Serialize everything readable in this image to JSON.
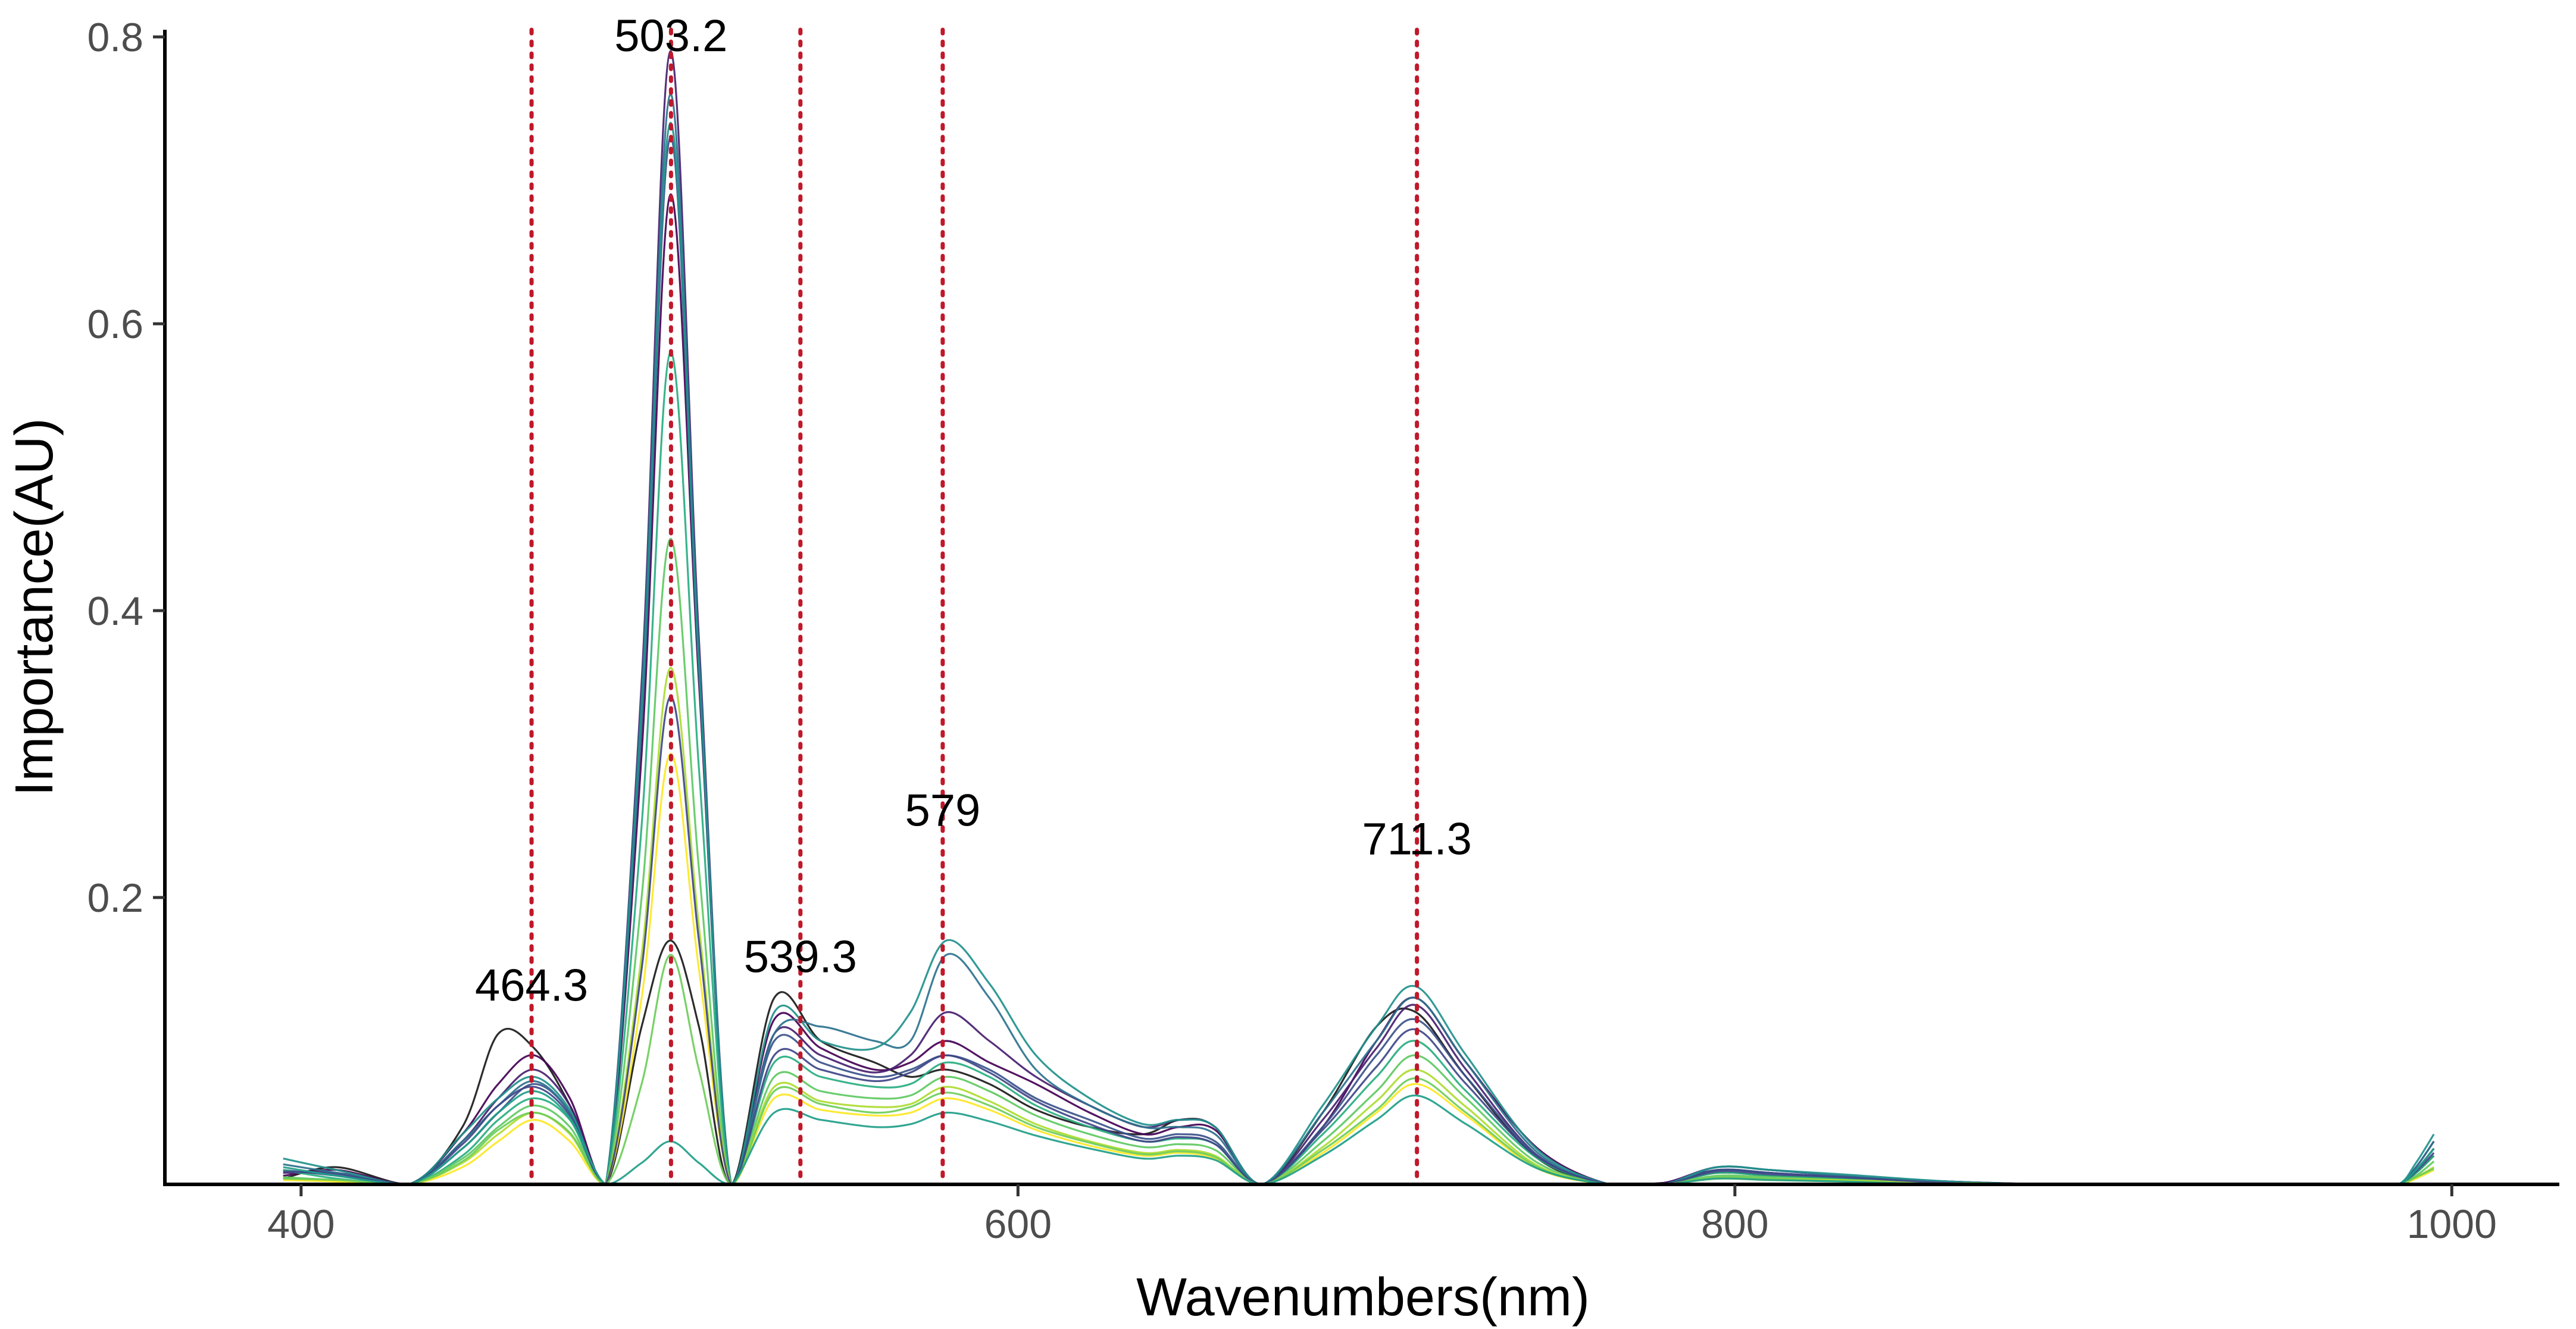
{
  "chart_data": {
    "type": "line",
    "xlabel": "Wavenumbers(nm)",
    "ylabel": "Importance(AU)",
    "xlim": [
      362,
      1030
    ],
    "ylim": [
      0,
      0.805
    ],
    "x_ticks": [
      "400",
      "600",
      "800",
      "1000"
    ],
    "y_ticks": [
      "0.2",
      "0.4",
      "0.6",
      "0.8"
    ],
    "grid": false,
    "legend": "none",
    "markers": [
      {
        "x": 464.3,
        "label": "464.3",
        "label_y": 0.128
      },
      {
        "x": 503.2,
        "label": "503.2",
        "label_y": 0.79
      },
      {
        "x": 539.3,
        "label": "539.3",
        "label_y": 0.148
      },
      {
        "x": 579,
        "label": "579",
        "label_y": 0.25
      },
      {
        "x": 711.3,
        "label": "711.3",
        "label_y": 0.23
      }
    ],
    "marker_color": "#c0182a",
    "series_palette": [
      "#440154",
      "#3b528b",
      "#21918c",
      "#5ec962",
      "#fde725"
    ],
    "series": [
      {
        "color": "#1a1a1a",
        "values": [
          0.004,
          0.012,
          0.0,
          0.04,
          0.105,
          0.095,
          0.055,
          0.0,
          0.11,
          0.17,
          0.11,
          0.0,
          0.13,
          0.1,
          0.085,
          0.075,
          0.08,
          0.07,
          0.052,
          0.04,
          0.035,
          0.045,
          0.04,
          0.0,
          0.05,
          0.11,
          0.12,
          0.075,
          0.018,
          0.0,
          0.0,
          0.008,
          0.006,
          0.004,
          0.0,
          0.0,
          0.0,
          0.0,
          0.0,
          0.0,
          0.0,
          0.008,
          0.02
        ]
      },
      {
        "color": "#440154",
        "values": [
          0.006,
          0.01,
          0.0,
          0.035,
          0.07,
          0.09,
          0.06,
          0.0,
          0.3,
          0.69,
          0.35,
          0.0,
          0.115,
          0.095,
          0.08,
          0.085,
          0.1,
          0.085,
          0.07,
          0.05,
          0.035,
          0.04,
          0.038,
          0.0,
          0.04,
          0.1,
          0.13,
          0.085,
          0.025,
          0.0,
          0.001,
          0.01,
          0.008,
          0.005,
          0.002,
          0.0,
          0.0,
          0.0,
          0.0,
          0.0,
          0.0,
          0.01,
          0.025
        ]
      },
      {
        "color": "#481f70",
        "values": [
          0.008,
          0.008,
          0.0,
          0.03,
          0.06,
          0.08,
          0.055,
          0.0,
          0.35,
          0.79,
          0.38,
          0.0,
          0.105,
          0.09,
          0.078,
          0.09,
          0.12,
          0.1,
          0.075,
          0.055,
          0.04,
          0.045,
          0.04,
          0.0,
          0.045,
          0.095,
          0.125,
          0.08,
          0.02,
          0.0,
          0.001,
          0.012,
          0.01,
          0.006,
          0.002,
          0.0,
          0.0,
          0.0,
          0.0,
          0.0,
          0.0,
          0.012,
          0.03
        ]
      },
      {
        "color": "#3b528b",
        "values": [
          0.01,
          0.006,
          0.0,
          0.025,
          0.05,
          0.07,
          0.05,
          0.0,
          0.32,
          0.73,
          0.36,
          0.0,
          0.1,
          0.085,
          0.075,
          0.08,
          0.09,
          0.08,
          0.06,
          0.045,
          0.032,
          0.035,
          0.03,
          0.0,
          0.04,
          0.09,
          0.115,
          0.075,
          0.02,
          0.0,
          0.0,
          0.01,
          0.008,
          0.005,
          0.001,
          0.0,
          0.0,
          0.0,
          0.0,
          0.0,
          0.0,
          0.01,
          0.025
        ]
      },
      {
        "color": "#2c728e",
        "values": [
          0.014,
          0.008,
          0.0,
          0.03,
          0.055,
          0.072,
          0.05,
          0.0,
          0.34,
          0.76,
          0.37,
          0.0,
          0.105,
          0.11,
          0.1,
          0.1,
          0.16,
          0.13,
          0.08,
          0.055,
          0.04,
          0.04,
          0.035,
          0.0,
          0.05,
          0.1,
          0.13,
          0.085,
          0.022,
          0.0,
          0.0,
          0.012,
          0.01,
          0.006,
          0.002,
          0.0,
          0.0,
          0.0,
          0.0,
          0.0,
          0.0,
          0.012,
          0.03
        ]
      },
      {
        "color": "#21918c",
        "values": [
          0.018,
          0.01,
          0.0,
          0.035,
          0.06,
          0.075,
          0.052,
          0.0,
          0.33,
          0.74,
          0.36,
          0.0,
          0.12,
          0.1,
          0.095,
          0.12,
          0.17,
          0.14,
          0.09,
          0.06,
          0.042,
          0.045,
          0.04,
          0.0,
          0.055,
          0.11,
          0.138,
          0.09,
          0.024,
          0.0,
          0.0,
          0.012,
          0.01,
          0.007,
          0.002,
          0.0,
          0.0,
          0.0,
          0.0,
          0.0,
          0.0,
          0.015,
          0.035
        ]
      },
      {
        "color": "#28ae80",
        "values": [
          0.01,
          0.004,
          0.0,
          0.02,
          0.045,
          0.06,
          0.045,
          0.0,
          0.25,
          0.58,
          0.29,
          0.0,
          0.085,
          0.075,
          0.068,
          0.07,
          0.085,
          0.075,
          0.055,
          0.04,
          0.03,
          0.032,
          0.028,
          0.0,
          0.035,
          0.075,
          0.1,
          0.065,
          0.018,
          0.0,
          0.0,
          0.008,
          0.006,
          0.004,
          0.001,
          0.0,
          0.0,
          0.0,
          0.0,
          0.0,
          0.0,
          0.008,
          0.02
        ]
      },
      {
        "color": "#5ec962",
        "values": [
          0.005,
          0.003,
          0.0,
          0.018,
          0.04,
          0.055,
          0.04,
          0.0,
          0.2,
          0.45,
          0.22,
          0.0,
          0.075,
          0.065,
          0.06,
          0.062,
          0.075,
          0.065,
          0.048,
          0.035,
          0.026,
          0.028,
          0.024,
          0.0,
          0.03,
          0.065,
          0.09,
          0.06,
          0.015,
          0.0,
          0.0,
          0.006,
          0.005,
          0.003,
          0.001,
          0.0,
          0.0,
          0.0,
          0.0,
          0.0,
          0.0,
          0.006,
          0.016
        ]
      },
      {
        "color": "#addc30",
        "values": [
          0.004,
          0.002,
          0.0,
          0.015,
          0.035,
          0.05,
          0.035,
          0.0,
          0.16,
          0.36,
          0.18,
          0.0,
          0.068,
          0.058,
          0.054,
          0.056,
          0.068,
          0.058,
          0.042,
          0.03,
          0.022,
          0.024,
          0.02,
          0.0,
          0.026,
          0.058,
          0.08,
          0.054,
          0.013,
          0.0,
          0.0,
          0.005,
          0.004,
          0.003,
          0.001,
          0.0,
          0.0,
          0.0,
          0.0,
          0.0,
          0.0,
          0.005,
          0.012
        ]
      },
      {
        "color": "#fde725",
        "values": [
          0.003,
          0.002,
          0.0,
          0.012,
          0.03,
          0.045,
          0.03,
          0.0,
          0.13,
          0.3,
          0.15,
          0.0,
          0.06,
          0.052,
          0.048,
          0.05,
          0.06,
          0.052,
          0.038,
          0.027,
          0.02,
          0.022,
          0.018,
          0.0,
          0.022,
          0.05,
          0.07,
          0.048,
          0.011,
          0.0,
          0.0,
          0.004,
          0.003,
          0.002,
          0.0,
          0.0,
          0.0,
          0.0,
          0.0,
          0.0,
          0.0,
          0.004,
          0.01
        ]
      },
      {
        "color": "#3f4788",
        "values": [
          0.009,
          0.007,
          0.0,
          0.028,
          0.055,
          0.068,
          0.048,
          0.0,
          0.15,
          0.34,
          0.17,
          0.0,
          0.09,
          0.08,
          0.072,
          0.078,
          0.09,
          0.078,
          0.058,
          0.042,
          0.03,
          0.033,
          0.028,
          0.0,
          0.038,
          0.082,
          0.108,
          0.07,
          0.019,
          0.0,
          0.0,
          0.009,
          0.007,
          0.005,
          0.001,
          0.0,
          0.0,
          0.0,
          0.0,
          0.0,
          0.0,
          0.009,
          0.022
        ]
      },
      {
        "color": "#6ccd5a",
        "values": [
          0.004,
          0.003,
          0.0,
          0.016,
          0.038,
          0.05,
          0.036,
          0.0,
          0.07,
          0.16,
          0.08,
          0.0,
          0.065,
          0.056,
          0.05,
          0.054,
          0.064,
          0.055,
          0.04,
          0.029,
          0.021,
          0.023,
          0.019,
          0.0,
          0.024,
          0.052,
          0.074,
          0.05,
          0.012,
          0.0,
          0.0,
          0.005,
          0.004,
          0.002,
          0.0,
          0.0,
          0.0,
          0.0,
          0.0,
          0.0,
          0.0,
          0.005,
          0.011
        ]
      },
      {
        "color": "#1f9e89",
        "values": [
          0.012,
          0.006,
          0.0,
          0.025,
          0.05,
          0.065,
          0.046,
          0.0,
          0.015,
          0.03,
          0.015,
          0.0,
          0.05,
          0.045,
          0.04,
          0.042,
          0.05,
          0.044,
          0.034,
          0.025,
          0.018,
          0.02,
          0.017,
          0.0,
          0.02,
          0.045,
          0.062,
          0.042,
          0.011,
          0.0,
          0.0,
          0.004,
          0.003,
          0.002,
          0.0,
          0.0,
          0.0,
          0.0,
          0.0,
          0.0,
          0.0,
          0.01,
          0.025
        ]
      }
    ]
  }
}
